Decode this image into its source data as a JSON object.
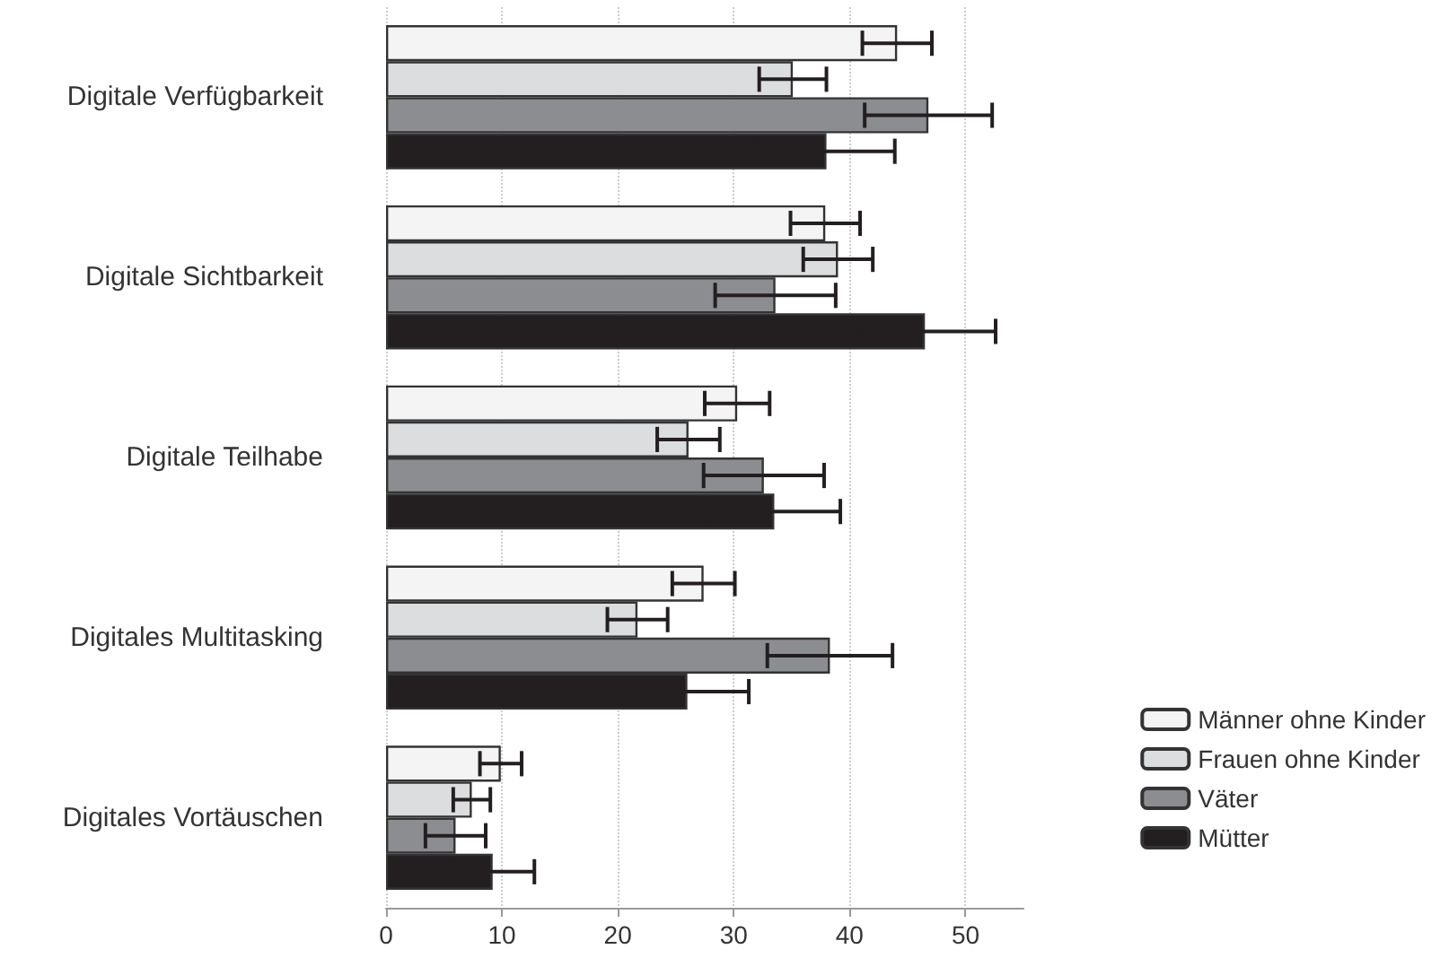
{
  "chart_data": {
    "type": "bar",
    "orientation": "horizontal",
    "categories": [
      "Digitale Verfügbarkeit",
      "Digitale Sichtbarkeit",
      "Digitale Teilhabe",
      "Digitales Multitasking",
      "Digitales Vortäuschen"
    ],
    "series": [
      {
        "name": "Männer ohne Kinder",
        "color": "#f4f4f4",
        "values": [
          44.1,
          37.9,
          30.3,
          27.4,
          9.9
        ],
        "errors": [
          3,
          3,
          2.8,
          2.7,
          1.8
        ]
      },
      {
        "name": "Frauen ohne Kinder",
        "color": "#dcdddf",
        "values": [
          35.1,
          39.0,
          26.1,
          21.7,
          7.4
        ],
        "errors": [
          2.9,
          3,
          2.7,
          2.6,
          1.6
        ]
      },
      {
        "name": "Väter",
        "color": "#8c8d90",
        "values": [
          46.8,
          33.6,
          32.6,
          38.3,
          6.0
        ],
        "errors": [
          5.5,
          5.2,
          5.2,
          5.4,
          2.6
        ]
      },
      {
        "name": "Mütter",
        "color": "#231f20",
        "values": [
          38.0,
          46.5,
          33.5,
          26.0,
          9.2
        ],
        "errors": [
          5.9,
          6.1,
          5.7,
          5.3,
          3.6
        ]
      }
    ],
    "xlim": [
      0,
      55
    ],
    "xticks": [
      0,
      10,
      20,
      30,
      40,
      50
    ],
    "grid": "x",
    "legend": "bottom right"
  }
}
